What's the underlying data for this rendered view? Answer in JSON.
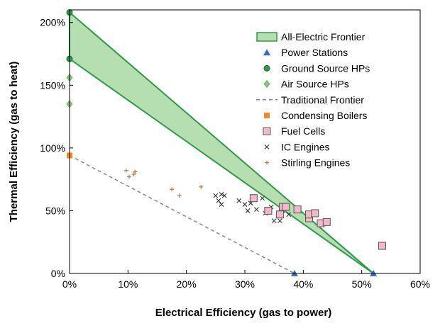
{
  "chart_data": {
    "type": "scatter",
    "xlabel": "Electrical Efficiency (gas to power)",
    "ylabel": "Thermal Efficiency (gas to heat)",
    "xlim": [
      0,
      0.6
    ],
    "ylim": [
      0,
      2.1
    ],
    "x_ticks": [
      {
        "value": 0,
        "label": "0%"
      },
      {
        "value": 0.1,
        "label": "10%"
      },
      {
        "value": 0.2,
        "label": "20%"
      },
      {
        "value": 0.3,
        "label": "30%"
      },
      {
        "value": 0.4,
        "label": "40%"
      },
      {
        "value": 0.5,
        "label": "50%"
      },
      {
        "value": 0.6,
        "label": "60%"
      }
    ],
    "y_ticks": [
      {
        "value": 0,
        "label": "0%"
      },
      {
        "value": 0.5,
        "label": "50%"
      },
      {
        "value": 1.0,
        "label": "100%"
      },
      {
        "value": 1.5,
        "label": "150%"
      },
      {
        "value": 2.0,
        "label": "200%"
      }
    ],
    "grid": false,
    "legend_position": "top-right",
    "series": [
      {
        "name": "All-Electric Frontier",
        "kind": "band",
        "color": "#2e9a48",
        "fill": "#b5dfb1",
        "points": [
          [
            0,
            2.08
          ],
          [
            0.52,
            0
          ],
          [
            0,
            1.71
          ]
        ]
      },
      {
        "name": "Power Stations",
        "kind": "triangle",
        "color": "#3a6bbd",
        "points": [
          [
            0.385,
            0
          ],
          [
            0.52,
            0
          ]
        ]
      },
      {
        "name": "Ground Source HPs",
        "kind": "circle",
        "color": "#2e9a48",
        "points": [
          [
            0,
            2.08
          ],
          [
            0,
            1.71
          ]
        ]
      },
      {
        "name": "Air Source HPs",
        "kind": "diamond",
        "color": "#8cc47e",
        "points": [
          [
            0,
            1.56
          ],
          [
            0,
            1.35
          ]
        ]
      },
      {
        "name": "Traditional Frontier",
        "kind": "dashed",
        "color": "#888888",
        "points": [
          [
            0,
            0.94
          ],
          [
            0.385,
            0
          ]
        ]
      },
      {
        "name": "Condensing Boilers",
        "kind": "square",
        "color": "#f08a24",
        "points": [
          [
            0,
            0.94
          ]
        ]
      },
      {
        "name": "Fuel Cells",
        "kind": "hollow-square",
        "color": "#f4b9c8",
        "points": [
          [
            0.315,
            0.6
          ],
          [
            0.34,
            0.5
          ],
          [
            0.36,
            0.47
          ],
          [
            0.365,
            0.53
          ],
          [
            0.37,
            0.53
          ],
          [
            0.39,
            0.51
          ],
          [
            0.41,
            0.44
          ],
          [
            0.41,
            0.47
          ],
          [
            0.42,
            0.48
          ],
          [
            0.43,
            0.4
          ],
          [
            0.44,
            0.41
          ],
          [
            0.535,
            0.22
          ]
        ]
      },
      {
        "name": "IC Engines",
        "kind": "x",
        "color": "#333333",
        "points": [
          [
            0.25,
            0.62
          ],
          [
            0.255,
            0.58
          ],
          [
            0.26,
            0.63
          ],
          [
            0.26,
            0.55
          ],
          [
            0.265,
            0.62
          ],
          [
            0.29,
            0.58
          ],
          [
            0.3,
            0.55
          ],
          [
            0.305,
            0.5
          ],
          [
            0.31,
            0.56
          ],
          [
            0.32,
            0.51
          ],
          [
            0.33,
            0.6
          ],
          [
            0.335,
            0.48
          ],
          [
            0.345,
            0.53
          ],
          [
            0.35,
            0.42
          ],
          [
            0.36,
            0.42
          ],
          [
            0.365,
            0.5
          ],
          [
            0.375,
            0.47
          ],
          [
            0.41,
            0.43
          ]
        ]
      },
      {
        "name": "Stirling Engines",
        "kind": "plus",
        "color": "#c86a33",
        "points": [
          [
            0.097,
            0.82
          ],
          [
            0.102,
            0.77
          ],
          [
            0.11,
            0.79
          ],
          [
            0.112,
            0.81
          ],
          [
            0.175,
            0.67
          ],
          [
            0.188,
            0.62
          ],
          [
            0.225,
            0.69
          ]
        ]
      }
    ]
  }
}
